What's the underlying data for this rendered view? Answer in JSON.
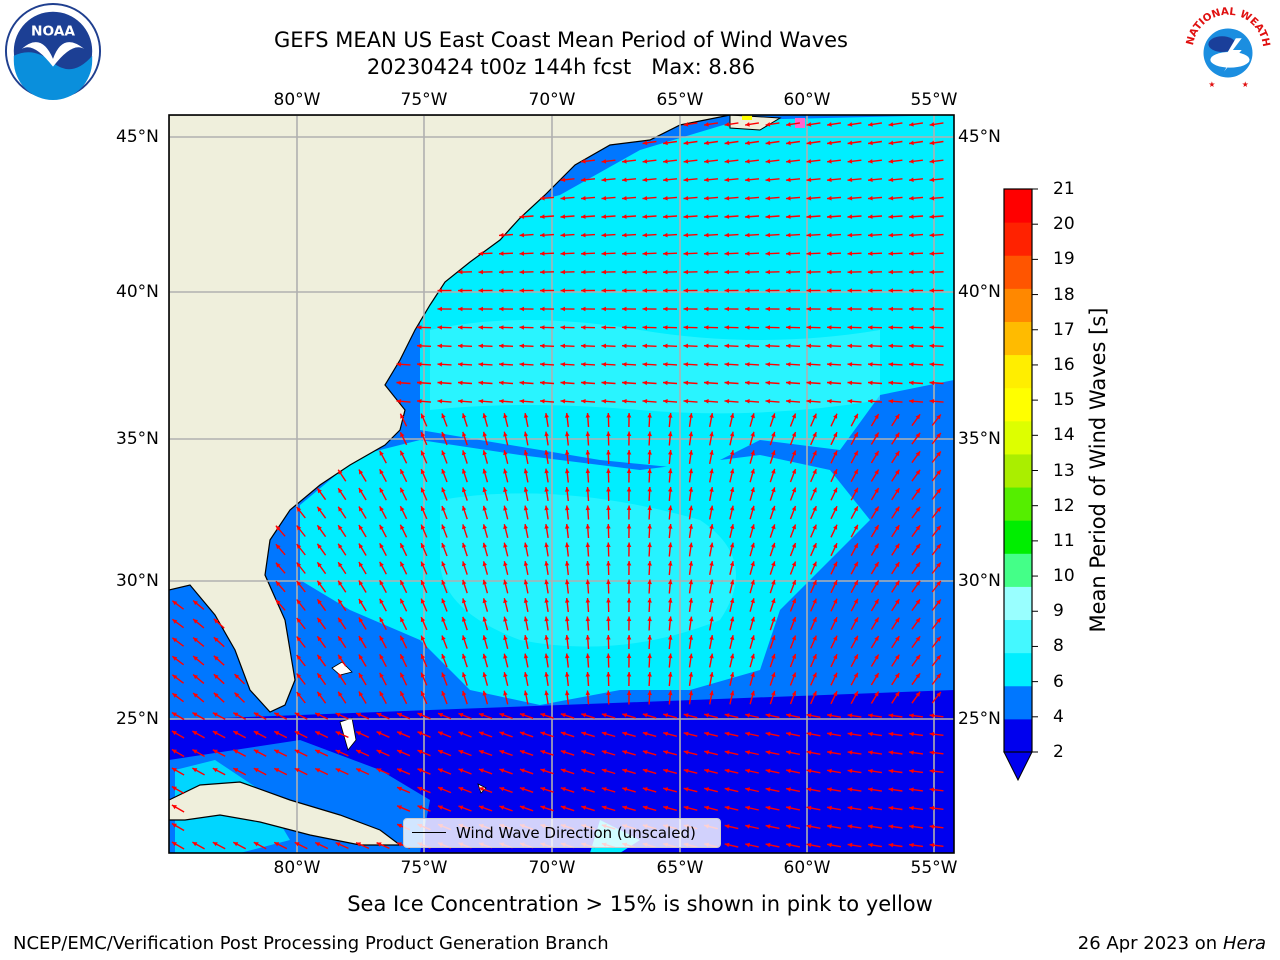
{
  "title": {
    "line1": "GEFS MEAN US East Coast Mean Period of Wind Waves",
    "line2": "20230424 t00z 144h fcst   Max: 8.86"
  },
  "logos": {
    "left": {
      "icon": "noaa-logo",
      "text": "NOAA"
    },
    "right": {
      "icon": "nws-logo",
      "text": "NATIONAL WEATHER SERVICE"
    }
  },
  "map": {
    "lon_labels": [
      "80°W",
      "75°W",
      "70°W",
      "65°W",
      "60°W",
      "55°W"
    ],
    "lat_labels": [
      "45°N",
      "40°N",
      "35°N",
      "30°N",
      "25°N"
    ],
    "legend_label": "Wind Wave Direction (unscaled)",
    "colors": {
      "land": "#efefdc",
      "coast": "#000000",
      "grid": "#b0b0b0",
      "arrow": "#ff0000"
    }
  },
  "colorbar": {
    "label": "Mean Period of Wind Waves [s]",
    "ticks": [
      "21",
      "20",
      "19",
      "18",
      "17",
      "16",
      "15",
      "14",
      "13",
      "12",
      "11",
      "10",
      "9",
      "8",
      "6",
      "4",
      "2"
    ],
    "colors": [
      "#0000ee",
      "#0077ff",
      "#00eeff",
      "#44f8ff",
      "#99ffff",
      "#44ff88",
      "#00ee00",
      "#55ee00",
      "#aaee00",
      "#ddff00",
      "#ffff00",
      "#ffee00",
      "#ffbb00",
      "#ff8800",
      "#ff5500",
      "#ff2200",
      "#ff0000"
    ]
  },
  "note": "Sea Ice Concentration > 15% is shown in pink to yellow",
  "footer": {
    "left": "NCEP/EMC/Verification Post Processing Product Generation Branch",
    "right_date": "26 Apr 2023 on",
    "right_host": "Hera"
  }
}
